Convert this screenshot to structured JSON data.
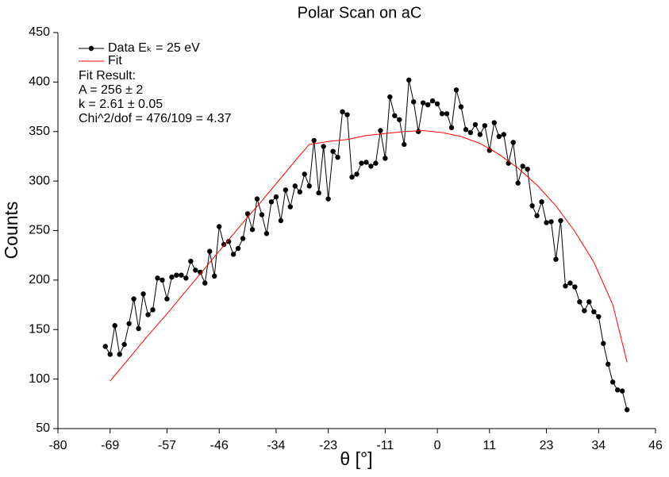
{
  "chart_data": {
    "type": "line",
    "title": "Polar Scan on aC",
    "xlabel": "θ [°]",
    "ylabel": "Counts",
    "xlim": [
      -80,
      46
    ],
    "xticks": [
      -80,
      -69,
      -57,
      -46,
      -34,
      -23,
      -11,
      0,
      11,
      23,
      34,
      46
    ],
    "ylim": [
      50,
      450
    ],
    "yticks": [
      50,
      100,
      150,
      200,
      250,
      300,
      350,
      400,
      450
    ],
    "legend": "upper left",
    "annotations": [
      "Fit Result:",
      "A = 256 ± 2",
      "k = 2.61 ± 0.05",
      "Chi^2/dof = 476/109 = 4.37"
    ],
    "series": [
      {
        "name": "Data Eₖ = 25 eV",
        "color": "#000000",
        "markers": true,
        "x": [
          -70,
          -69,
          -68,
          -67,
          -66,
          -65,
          -64,
          -63,
          -62,
          -61,
          -60,
          -59,
          -58,
          -57,
          -56,
          -55,
          -54,
          -53,
          -52,
          -51,
          -50,
          -49,
          -48,
          -47,
          -46,
          -45,
          -44,
          -43,
          -42,
          -41,
          -40,
          -39,
          -38,
          -37,
          -36,
          -35,
          -34,
          -33,
          -32,
          -31,
          -30,
          -29,
          -28,
          -27,
          -26,
          -25,
          -24,
          -23,
          -22,
          -21,
          -20,
          -19,
          -18,
          -17,
          -16,
          -15,
          -14,
          -13,
          -12,
          -11,
          -10,
          -9,
          -8,
          -7,
          -6,
          -5,
          -4,
          -3,
          -2,
          -1,
          0,
          1,
          2,
          3,
          4,
          5,
          6,
          7,
          8,
          9,
          10,
          11,
          12,
          13,
          14,
          15,
          16,
          17,
          18,
          19,
          20,
          21,
          22,
          23,
          24,
          25,
          26,
          27,
          28,
          29,
          30,
          31,
          32,
          33,
          34,
          35,
          36,
          37,
          38,
          39,
          40
        ],
        "values": [
          133,
          125,
          154,
          125,
          135,
          156,
          181,
          151,
          186,
          165,
          170,
          202,
          200,
          181,
          203,
          205,
          205,
          202,
          219,
          210,
          208,
          197,
          229,
          204,
          254,
          236,
          239,
          226,
          232,
          242,
          267,
          251,
          282,
          266,
          247,
          279,
          284,
          260,
          291,
          274,
          295,
          289,
          307,
          295,
          341,
          288,
          335,
          282,
          330,
          324,
          370,
          367,
          304,
          307,
          318,
          319,
          315,
          318,
          351,
          323,
          385,
          366,
          362,
          337,
          402,
          380,
          350,
          379,
          377,
          381,
          378,
          368,
          368,
          354,
          392,
          375,
          352,
          349,
          357,
          347,
          356,
          331,
          359,
          345,
          347,
          318,
          339,
          298,
          315,
          312,
          275,
          265,
          279,
          258,
          259,
          221,
          260,
          194,
          197,
          193,
          178,
          169,
          178,
          168,
          163,
          136,
          115,
          97,
          89,
          88,
          69
        ]
      },
      {
        "name": "Fit",
        "color": "#ff0000",
        "markers": false,
        "x": [
          -69,
          -65,
          -61,
          -57,
          -53,
          -49,
          -45,
          -41,
          -37,
          -33,
          -29,
          -27,
          -23,
          -19,
          -15,
          -11,
          -7,
          -3,
          1,
          5,
          9,
          13,
          17,
          21,
          25,
          29,
          33,
          37,
          40
        ],
        "values": [
          98,
          121,
          144,
          166,
          189,
          212,
          235,
          258,
          280,
          303,
          326,
          337,
          340,
          342,
          346,
          348,
          350,
          351,
          349,
          345,
          338,
          327,
          313,
          296,
          275,
          249,
          218,
          175,
          117
        ]
      }
    ]
  }
}
